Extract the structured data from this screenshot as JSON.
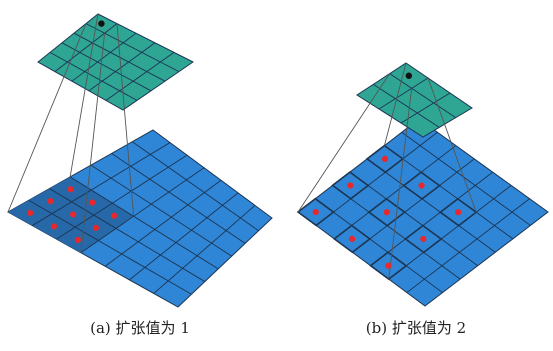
{
  "captions": {
    "a": "(a)  扩张值为 1",
    "b": "(b)  扩张值为 2"
  },
  "colors": {
    "input_fill": "#2f86d6",
    "input_active": "#2668a8",
    "output_fill": "#2ea693",
    "grid_line": "#1c3553",
    "marker": "#e8282c",
    "center_dot": "#111111",
    "connector": "#555555"
  },
  "diagrams": [
    {
      "name": "dilation-1",
      "input_size": 7,
      "output_size": 5,
      "kernel_size": 3,
      "dilation": 1,
      "output_cell": [
        0,
        0
      ]
    },
    {
      "name": "dilation-2",
      "input_size": 7,
      "output_size": 3,
      "kernel_size": 3,
      "dilation": 2,
      "output_cell": [
        0,
        0
      ]
    }
  ]
}
